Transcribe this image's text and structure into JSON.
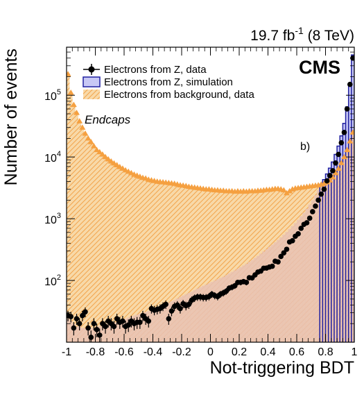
{
  "lumi_label": "19.7 fb",
  "lumi_exp": "-1",
  "lumi_suffix": " (8 TeV)",
  "experiment_label": "CMS",
  "region_label": "Endcaps",
  "panel_label": "b)",
  "colors": {
    "data": "#000000",
    "simulation_fill": "#c8c8f5",
    "simulation_line": "#1f1fa0",
    "background_fill": "#f7c98c",
    "background_marker": "#f5a040",
    "overlap_fill": "#e9c2b4"
  },
  "chart_data": {
    "type": "bar",
    "xlabel": "Not-triggering BDT",
    "ylabel": "Number of events",
    "xlim": [
      -1,
      1
    ],
    "ylim": [
      10,
      600000
    ],
    "log_y": true,
    "bin_width": 0.02,
    "x_ticks": [
      -1,
      -0.8,
      -0.6,
      -0.4,
      -0.2,
      0,
      0.2,
      0.4,
      0.6,
      0.8,
      1
    ],
    "x_tick_labels": [
      "-1",
      "-0.8",
      "-0.6",
      "-0.4",
      "-0.2",
      "0",
      "0.2",
      "0.4",
      "0.6",
      "0.8",
      "1"
    ],
    "y_ticks": [
      100,
      1000,
      10000,
      100000
    ],
    "y_tick_labels": [
      {
        "base": "10",
        "exp": "2"
      },
      {
        "base": "10",
        "exp": "3"
      },
      {
        "base": "10",
        "exp": "4"
      },
      {
        "base": "10",
        "exp": "5"
      }
    ],
    "legend": {
      "position": "top-left",
      "entries": [
        {
          "name": "Electrons from Z, data",
          "style": "marker"
        },
        {
          "name": "Electrons from Z, simulation",
          "style": "fill-blue"
        },
        {
          "name": "Electrons from background, data",
          "style": "fill-hatch"
        }
      ]
    },
    "series": [
      {
        "name": "Electrons from background, data",
        "style": "hatched-fill-with-triangles",
        "x_start": -0.99,
        "step": 0.02,
        "values": [
          220000,
          110000,
          70000,
          52000,
          38000,
          30000,
          24000,
          20000,
          17500,
          15000,
          13000,
          12000,
          11000,
          10000,
          9200,
          8500,
          7900,
          7400,
          6900,
          6500,
          6100,
          5800,
          5500,
          5200,
          5000,
          4800,
          4600,
          4500,
          4300,
          4200,
          4100,
          4000,
          3950,
          3900,
          3850,
          3800,
          3750,
          3700,
          3600,
          3500,
          3450,
          3400,
          3300,
          3250,
          3200,
          3150,
          3100,
          3050,
          3000,
          3000,
          2950,
          2900,
          2900,
          2850,
          2850,
          2800,
          2800,
          2800,
          2750,
          2800,
          2750,
          2800,
          2750,
          2800,
          2800,
          2800,
          2850,
          2850,
          2900,
          2950,
          2950,
          3000,
          3050,
          3050,
          3000,
          2900,
          2600,
          2800,
          3000,
          3100,
          3150,
          3200,
          3250,
          3300,
          3350,
          3400,
          3450,
          3500,
          3600,
          3700,
          3900,
          4200,
          4700,
          5500,
          6500,
          8000,
          10000,
          13000,
          18000,
          25000
        ]
      },
      {
        "name": "Electrons from Z, simulation",
        "style": "filled-histogram",
        "x_start": -0.99,
        "step": 0.02,
        "values": [
          24,
          22,
          20,
          18,
          18,
          17,
          17,
          17,
          17,
          17,
          18,
          18,
          19,
          19,
          20,
          20,
          21,
          21,
          22,
          23,
          24,
          25,
          26,
          27,
          28,
          29,
          30,
          31,
          32,
          33,
          34,
          36,
          38,
          40,
          42,
          44,
          46,
          48,
          51,
          54,
          57,
          60,
          63,
          66,
          70,
          74,
          78,
          82,
          86,
          90,
          95,
          100,
          105,
          110,
          115,
          122,
          130,
          138,
          146,
          155,
          165,
          175,
          187,
          200,
          215,
          232,
          250,
          272,
          295,
          320,
          350,
          380,
          415,
          455,
          500,
          550,
          610,
          680,
          760,
          850,
          960,
          1100,
          1250,
          1450,
          1700,
          2000,
          2400,
          2900,
          3500,
          4300,
          5300,
          6600,
          8300,
          11000,
          15000,
          22000,
          35000,
          65000,
          140000,
          450000
        ]
      },
      {
        "name": "Electrons from Z, data",
        "style": "points-with-errors",
        "x": [
          -0.99,
          -0.97,
          -0.95,
          -0.93,
          -0.91,
          -0.89,
          -0.87,
          -0.85,
          -0.83,
          -0.81,
          -0.79,
          -0.77,
          -0.75,
          -0.73,
          -0.71,
          -0.69,
          -0.67,
          -0.65,
          -0.63,
          -0.61,
          -0.59,
          -0.57,
          -0.55,
          -0.53,
          -0.51,
          -0.49,
          -0.47,
          -0.45,
          -0.43,
          -0.41,
          -0.39,
          -0.37,
          -0.35,
          -0.33,
          -0.31,
          -0.29,
          -0.27,
          -0.25,
          -0.23,
          -0.21,
          -0.19,
          -0.17,
          -0.15,
          -0.13,
          -0.11,
          -0.09,
          -0.07,
          -0.05,
          -0.03,
          -0.01,
          0.01,
          0.03,
          0.05,
          0.07,
          0.09,
          0.11,
          0.13,
          0.15,
          0.17,
          0.19,
          0.21,
          0.23,
          0.25,
          0.27,
          0.29,
          0.31,
          0.33,
          0.35,
          0.37,
          0.39,
          0.41,
          0.43,
          0.45,
          0.47,
          0.49,
          0.51,
          0.53,
          0.55,
          0.57,
          0.59,
          0.61,
          0.63,
          0.65,
          0.67,
          0.69,
          0.71,
          0.73,
          0.75,
          0.77,
          0.79,
          0.81,
          0.83,
          0.85,
          0.87,
          0.89,
          0.91,
          0.93,
          0.95,
          0.97,
          0.99
        ],
        "values": [
          27,
          26,
          17,
          24,
          20,
          27,
          31,
          17,
          12,
          20,
          16,
          13,
          20,
          18,
          22,
          20,
          18,
          24,
          21,
          22,
          18,
          19,
          22,
          20,
          21,
          21,
          27,
          24,
          22,
          35,
          33,
          34,
          35,
          38,
          41,
          24,
          32,
          38,
          40,
          35,
          42,
          39,
          41,
          48,
          52,
          54,
          54,
          53,
          53,
          55,
          60,
          57,
          55,
          60,
          63,
          67,
          75,
          78,
          82,
          93,
          93,
          96,
          93,
          111,
          110,
          123,
          137,
          142,
          158,
          159,
          165,
          170,
          205,
          200,
          245,
          280,
          320,
          420,
          440,
          520,
          570,
          700,
          810,
          860,
          1020,
          1300,
          1600,
          2000,
          2500,
          3000,
          4100,
          5000,
          6000,
          8000,
          11000,
          17000,
          25000,
          60000,
          150000,
          400000
        ]
      }
    ]
  }
}
